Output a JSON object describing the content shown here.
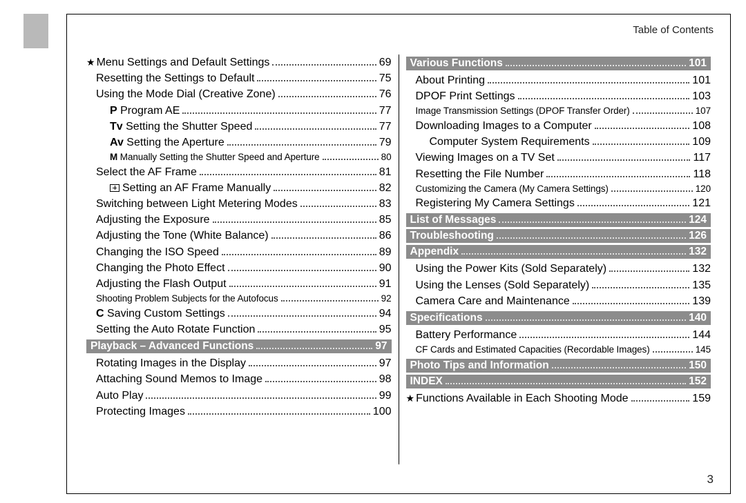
{
  "header": {
    "toc_label": "Table of Contents",
    "page_number": "3"
  },
  "colors": {
    "tab_bg": "#b9b9b9",
    "section_bg": "#8c8c8c",
    "section_fg": "#ffffff",
    "text": "#000000",
    "dots": "#555555"
  },
  "left": {
    "items": [
      {
        "type": "entry",
        "lead_star": true,
        "title": "Menu Settings and Default Settings",
        "page": "69"
      },
      {
        "type": "entry",
        "indent": 1,
        "title": "Resetting the Settings to Default",
        "page": "75"
      },
      {
        "type": "entry",
        "indent": 1,
        "title": "Using the Mode Dial (Creative Zone)",
        "page": "76"
      },
      {
        "type": "entry",
        "indent": 2,
        "bold_prefix": "P",
        "title": "Program AE",
        "page": "77"
      },
      {
        "type": "entry",
        "indent": 2,
        "bold_prefix": "Tv",
        "title": "Setting the Shutter Speed",
        "page": "77"
      },
      {
        "type": "entry",
        "indent": 2,
        "bold_prefix": "Av",
        "title": "Setting the Aperture",
        "page": "79"
      },
      {
        "type": "entry",
        "indent": 2,
        "bold_prefix": "M",
        "small": true,
        "title": "Manually Setting the Shutter Speed and Aperture",
        "page": "80"
      },
      {
        "type": "entry",
        "indent": 1,
        "title": "Select the AF Frame",
        "page": "81"
      },
      {
        "type": "entry",
        "indent": 2,
        "af_icon": true,
        "title": "Setting an AF Frame Manually",
        "page": "82"
      },
      {
        "type": "entry",
        "indent": 1,
        "title": "Switching between Light Metering Modes",
        "page": "83"
      },
      {
        "type": "entry",
        "indent": 1,
        "title": "Adjusting the Exposure",
        "page": "85"
      },
      {
        "type": "entry",
        "indent": 1,
        "title": "Adjusting the Tone (White Balance)",
        "page": "86"
      },
      {
        "type": "entry",
        "indent": 1,
        "title": "Changing the ISO Speed",
        "page": "89"
      },
      {
        "type": "entry",
        "indent": 1,
        "title": "Changing the Photo Effect",
        "page": "90"
      },
      {
        "type": "entry",
        "indent": 1,
        "title": "Adjusting the Flash Output",
        "page": "91"
      },
      {
        "type": "entry",
        "indent": 1,
        "small": true,
        "title": "Shooting Problem Subjects for the Autofocus",
        "page": "92"
      },
      {
        "type": "entry",
        "indent": 1,
        "bold_prefix": "C",
        "title": "Saving Custom Settings",
        "page": "94"
      },
      {
        "type": "entry",
        "indent": 1,
        "title": "Setting the Auto Rotate Function",
        "page": "95"
      },
      {
        "type": "section",
        "title": "Playback – Advanced Functions",
        "page": "97"
      },
      {
        "type": "entry",
        "indent": 1,
        "title": "Rotating Images in the Display",
        "page": "97"
      },
      {
        "type": "entry",
        "indent": 1,
        "title": "Attaching Sound Memos to Image",
        "page": "98"
      },
      {
        "type": "entry",
        "indent": 1,
        "title": "Auto Play",
        "page": "99"
      },
      {
        "type": "entry",
        "indent": 1,
        "title": "Protecting Images",
        "page": "100"
      }
    ]
  },
  "right": {
    "items": [
      {
        "type": "section",
        "title": "Various Functions",
        "page": "101"
      },
      {
        "type": "entry",
        "indent": 1,
        "title": "About Printing",
        "page": "101"
      },
      {
        "type": "entry",
        "indent": 1,
        "title": "DPOF Print Settings",
        "page": "103"
      },
      {
        "type": "entry",
        "indent": 1,
        "small": true,
        "title": "Image Transmission Settings (DPOF Transfer Order)",
        "page": "107"
      },
      {
        "type": "entry",
        "indent": 1,
        "title": "Downloading Images to a Computer",
        "page": "108"
      },
      {
        "type": "entry",
        "indent": 2,
        "title": "Computer System Requirements",
        "page": "109"
      },
      {
        "type": "entry",
        "indent": 1,
        "title": "Viewing Images on a TV Set",
        "page": "117"
      },
      {
        "type": "entry",
        "indent": 1,
        "title": "Resetting the File Number",
        "page": "118"
      },
      {
        "type": "entry",
        "indent": 1,
        "small": true,
        "title": "Customizing the Camera (My Camera Settings)",
        "page": "120"
      },
      {
        "type": "entry",
        "indent": 1,
        "title": "Registering My Camera Settings",
        "page": "121"
      },
      {
        "type": "section",
        "title": "List of Messages",
        "page": "124"
      },
      {
        "type": "section",
        "title": "Troubleshooting",
        "page": "126"
      },
      {
        "type": "section",
        "title": "Appendix",
        "page": "132"
      },
      {
        "type": "entry",
        "indent": 1,
        "title": "Using the Power Kits (Sold Separately)",
        "page": "132"
      },
      {
        "type": "entry",
        "indent": 1,
        "title": "Using the Lenses (Sold Separately)",
        "page": "135"
      },
      {
        "type": "entry",
        "indent": 1,
        "title": "Camera Care and Maintenance",
        "page": "139"
      },
      {
        "type": "section",
        "title": "Specifications",
        "page": "140"
      },
      {
        "type": "entry",
        "indent": 1,
        "title": "Battery Performance",
        "page": "144"
      },
      {
        "type": "entry",
        "indent": 1,
        "small": true,
        "title": "CF Cards and Estimated Capacities (Recordable Images)",
        "page": "145"
      },
      {
        "type": "section",
        "title": "Photo Tips and Information",
        "page": "150"
      },
      {
        "type": "section",
        "title": "INDEX",
        "page": "152"
      },
      {
        "type": "entry",
        "lead_star": true,
        "small": false,
        "title": "Functions Available in Each Shooting Mode",
        "page": "159"
      }
    ]
  }
}
